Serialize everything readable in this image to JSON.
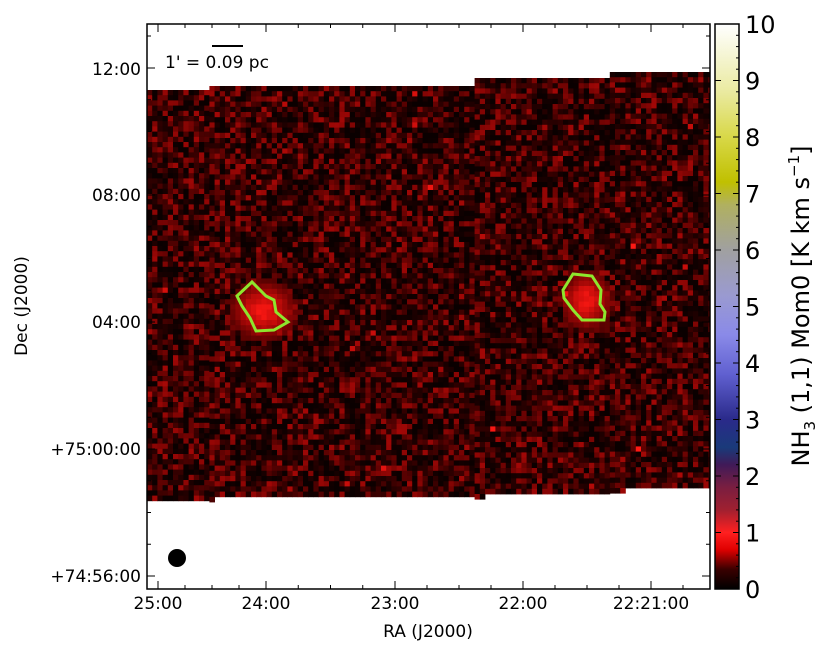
{
  "chart_data": {
    "type": "heatmap",
    "xlabel": "RA (J2000)",
    "ylabel": "Dec (J2000)",
    "x_ticks": [
      "25:00",
      "24:00",
      "23:00",
      "22:00",
      "22:21:00"
    ],
    "y_ticks": [
      "12:00",
      "08:00",
      "04:00",
      "+75:00:00",
      "+74:56:00"
    ],
    "colorbar": {
      "label": "NH3 (1,1) Mom0 [K km s-1]",
      "label_parts": {
        "main": "NH",
        "sub": "3",
        "rest": " (1,1) Mom0 [K km s",
        "sup": "−1",
        "close": "]"
      },
      "ticks": [
        "0",
        "1",
        "2",
        "3",
        "4",
        "5",
        "6",
        "7",
        "8",
        "9",
        "10"
      ],
      "range": [
        0,
        10
      ]
    },
    "scalebar": {
      "text_left": "1' = ",
      "text_value": "0.09 pc"
    },
    "contour_color": "#8ee62d",
    "beam_color": "#000000",
    "sources": [
      {
        "peak_value": 1.0
      },
      {
        "peak_value": 1.0
      }
    ],
    "grid": false
  }
}
